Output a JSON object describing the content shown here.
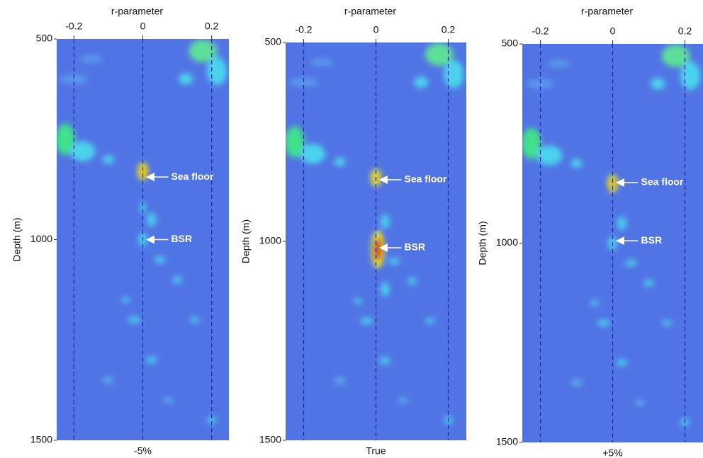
{
  "chart_data": [
    {
      "type": "heatmap",
      "title": "-5%",
      "xlabel": "r-parameter",
      "ylabel": "Depth (m)",
      "xlim": [
        -0.25,
        0.25
      ],
      "xticks": [
        -0.2,
        0,
        0.2
      ],
      "ylim": [
        1500,
        500
      ],
      "yticks": [
        500,
        1000,
        1500
      ],
      "grid": true,
      "annotations": [
        {
          "text": "Sea floor",
          "x": 0,
          "y": 844
        },
        {
          "text": "BSR",
          "x": 0,
          "y": 1000
        }
      ]
    },
    {
      "type": "heatmap",
      "title": "True",
      "xlabel": "r-parameter",
      "ylabel": "Depth (m)",
      "xlim": [
        -0.25,
        0.25
      ],
      "xticks": [
        -0.2,
        0,
        0.2
      ],
      "ylim": [
        1500,
        500
      ],
      "yticks": [
        500,
        1000,
        1500
      ],
      "grid": true,
      "annotations": [
        {
          "text": "Sea floor",
          "x": 0,
          "y": 845
        },
        {
          "text": "BSR",
          "x": 0,
          "y": 1016
        }
      ]
    },
    {
      "type": "heatmap",
      "title": "+5%",
      "xlabel": "r-parameter",
      "ylabel": "Depth (m)",
      "xlim": [
        -0.25,
        0.25
      ],
      "xticks": [
        -0.2,
        0,
        0.2
      ],
      "ylim": [
        1500,
        500
      ],
      "yticks": [
        500,
        1000,
        1500
      ],
      "grid": true,
      "annotations": [
        {
          "text": "Sea floor",
          "x": 0,
          "y": 848
        },
        {
          "text": "BSR",
          "x": 0,
          "y": 994
        }
      ]
    }
  ]
}
